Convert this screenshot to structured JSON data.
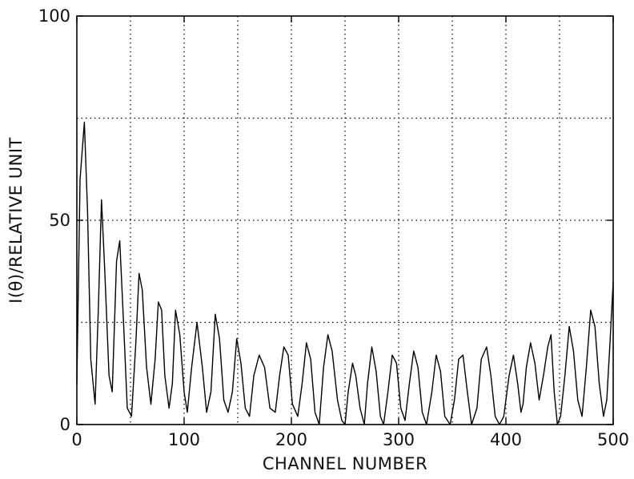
{
  "chart_data": {
    "type": "line",
    "title": "",
    "xlabel": "CHANNEL NUMBER",
    "ylabel": "I(θ)/RELATIVE UNIT",
    "xlim": [
      0,
      500
    ],
    "ylim": [
      0,
      100
    ],
    "x_ticks": [
      0,
      100,
      200,
      300,
      400,
      500
    ],
    "y_ticks": [
      0,
      50,
      100
    ],
    "x_tick_labels": [
      "0",
      "100",
      "200",
      "300",
      "400",
      "500"
    ],
    "y_tick_labels": [
      "0",
      "50",
      "100"
    ],
    "grid": true,
    "grid_style": "dotted",
    "grid_x": [
      50,
      100,
      150,
      200,
      250,
      300,
      350,
      400,
      450
    ],
    "grid_y": [
      25,
      50,
      75
    ],
    "series": [
      {
        "x": [
          0,
          3,
          7,
          10,
          13,
          17,
          20,
          23,
          26,
          30,
          33,
          37,
          40,
          44,
          47,
          51,
          55,
          58,
          61,
          65,
          69,
          73,
          76,
          79,
          82,
          86,
          89,
          92,
          96,
          100,
          103,
          107,
          112,
          117,
          121,
          125,
          129,
          133,
          137,
          141,
          145,
          149,
          153,
          157,
          161,
          165,
          170,
          175,
          180,
          185,
          189,
          193,
          197,
          201,
          206,
          210,
          214,
          218,
          222,
          226,
          230,
          234,
          238,
          243,
          247,
          250,
          253,
          257,
          260,
          264,
          268,
          271,
          275,
          279,
          283,
          286,
          290,
          294,
          298,
          302,
          306,
          310,
          314,
          318,
          322,
          326,
          331,
          335,
          339,
          343,
          348,
          352,
          356,
          360,
          364,
          368,
          373,
          377,
          382,
          386,
          390,
          394,
          398,
          403,
          407,
          411,
          414,
          416,
          419,
          423,
          427,
          431,
          435,
          439,
          442,
          445,
          448,
          451,
          455,
          459,
          463,
          467,
          471,
          475,
          479,
          483,
          487,
          491,
          494,
          497,
          500
        ],
        "y": [
          10,
          60,
          74,
          52,
          16,
          5,
          28,
          55,
          38,
          12,
          8,
          40,
          45,
          22,
          4,
          2,
          20,
          37,
          33,
          14,
          5,
          16,
          30,
          28,
          12,
          4,
          10,
          28,
          22,
          8,
          3,
          14,
          25,
          14,
          3,
          8,
          27,
          21,
          6,
          3,
          8,
          21,
          15,
          4,
          2,
          12,
          17,
          14,
          4,
          3,
          12,
          19,
          17,
          5,
          2,
          10,
          20,
          16,
          3,
          0,
          14,
          22,
          18,
          6,
          1,
          0,
          8,
          15,
          12,
          4,
          0,
          10,
          19,
          13,
          2,
          0,
          8,
          17,
          15,
          4,
          1,
          10,
          18,
          14,
          3,
          0,
          8,
          17,
          13,
          2,
          0,
          6,
          16,
          17,
          8,
          0,
          4,
          16,
          19,
          12,
          2,
          0,
          2,
          12,
          17,
          10,
          3,
          5,
          14,
          20,
          15,
          6,
          12,
          19,
          22,
          8,
          0,
          2,
          12,
          24,
          18,
          6,
          2,
          14,
          28,
          24,
          10,
          2,
          6,
          20,
          35
        ]
      }
    ]
  }
}
